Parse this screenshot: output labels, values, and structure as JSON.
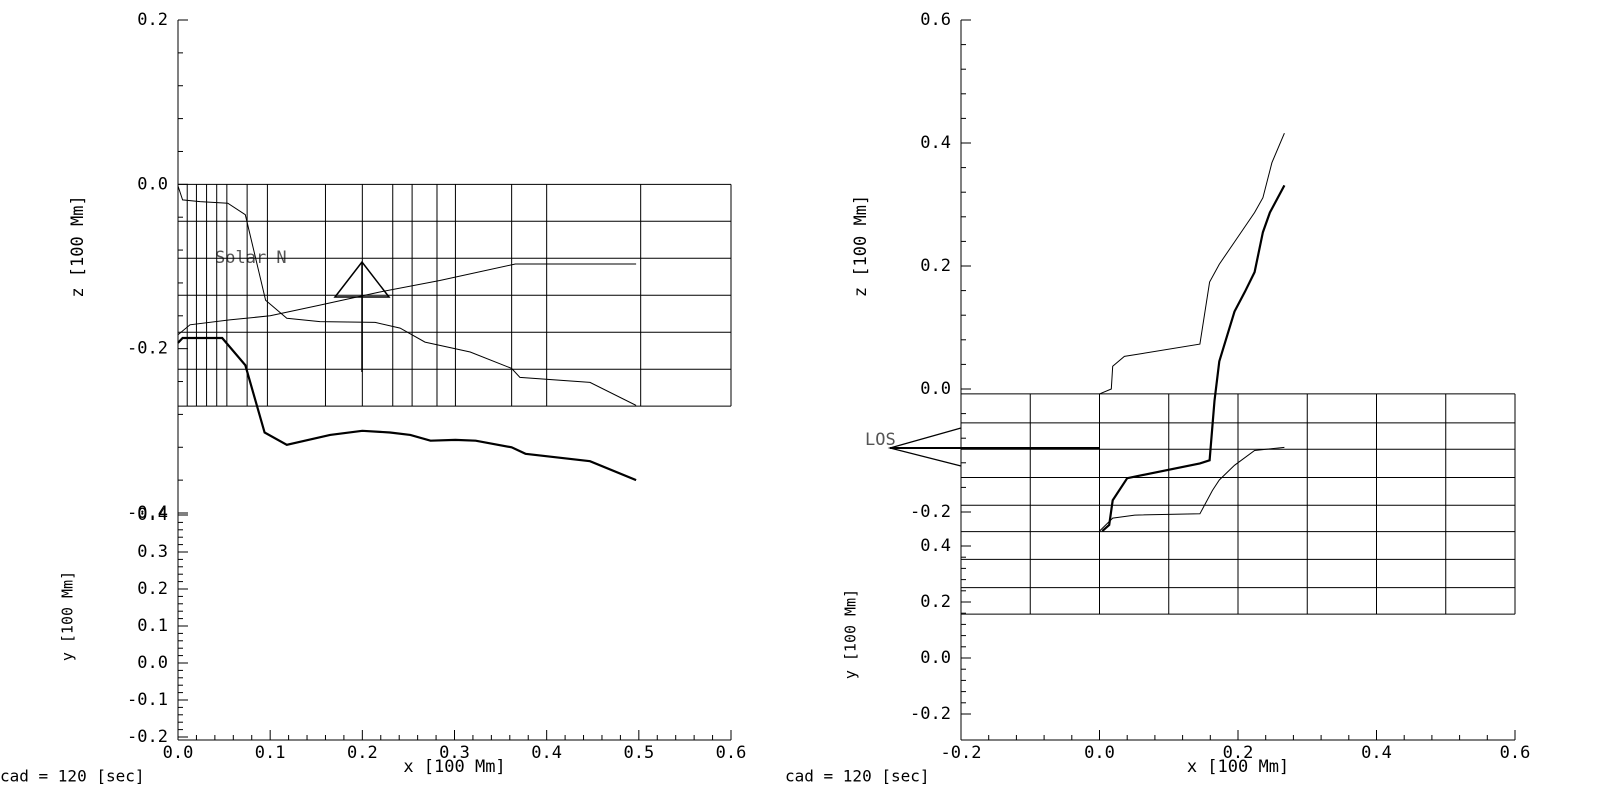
{
  "chart_data": [
    {
      "type": "line",
      "xlabel": "x [100 Mm]",
      "ylabel": "z [100 Mm]",
      "y2label": "y [100 Mm]",
      "footer": "cad =  120 [sec]",
      "annotation": "Solar N",
      "xlim": [
        0,
        0.6
      ],
      "xticks": [
        {
          "value": 0,
          "label": "0.0"
        },
        0.1,
        0.2,
        0.3,
        0.4,
        0.5,
        0.6
      ],
      "ylim": [
        -0.4,
        0.2
      ],
      "yticks": [
        -0.4,
        -0.2,
        {
          "value": 0,
          "label": "0.0"
        },
        0.2
      ],
      "y2lim": [
        -0.2,
        0.4
      ],
      "y2ticks": [
        -0.2,
        -0.1,
        {
          "value": 0,
          "label": "0.0"
        },
        0.1,
        0.2,
        0.3,
        0.4
      ],
      "mesh": {
        "x": [
          0,
          0.01,
          0.02,
          0.031,
          0.042,
          0.053,
          0.075,
          0.097,
          0.16,
          0.2,
          0.233,
          0.254,
          0.281,
          0.301,
          0.362,
          0.4,
          0.502,
          0.6
        ],
        "z": [
          0,
          -0.045,
          -0.09,
          -0.135,
          -0.18,
          -0.225,
          -0.27
        ]
      },
      "series": [
        {
          "color": "#000000",
          "linewidth": 1,
          "x": [
            0,
            0.005,
            0.024,
            0.054,
            0.073,
            0.095,
            0.118,
            0.154,
            0.214,
            0.241,
            0.268,
            0.317,
            0.362,
            0.371,
            0.447,
            0.497
          ],
          "values": [
            -0.002,
            -0.019,
            -0.021,
            -0.023,
            -0.037,
            -0.141,
            -0.163,
            -0.167,
            -0.168,
            -0.175,
            -0.192,
            -0.204,
            -0.224,
            -0.235,
            -0.241,
            -0.269
          ]
        },
        {
          "color": "#000000",
          "linewidth": 1,
          "x": [
            0,
            0.013,
            0.056,
            0.1,
            0.154,
            0.219,
            0.284,
            0.366,
            0.497
          ],
          "values": [
            -0.183,
            -0.171,
            -0.165,
            -0.16,
            -0.147,
            -0.131,
            -0.117,
            -0.097,
            -0.097
          ]
        },
        {
          "color": "#000000",
          "linewidth": 2.2,
          "x": [
            0,
            0.005,
            0.048,
            0.073,
            0.094,
            0.118,
            0.165,
            0.2,
            0.23,
            0.252,
            0.274,
            0.301,
            0.323,
            0.362,
            0.377,
            0.447,
            0.497
          ],
          "values": [
            -0.193,
            -0.187,
            -0.187,
            -0.22,
            -0.302,
            -0.317,
            -0.305,
            -0.3,
            -0.302,
            -0.305,
            -0.312,
            -0.311,
            -0.312,
            -0.32,
            -0.328,
            -0.337,
            -0.36
          ]
        }
      ]
    },
    {
      "type": "line",
      "xlabel": "x [100 Mm]",
      "ylabel": "z [100 Mm]",
      "y2label": "y [100 Mm]",
      "footer": "cad =  120 [sec]",
      "annotation": "LOS",
      "xlim": [
        -0.2,
        0.6
      ],
      "xticks": [
        -0.2,
        {
          "value": 0,
          "label": "0.0"
        },
        0.2,
        0.4,
        0.6
      ],
      "ylim": [
        -0.2,
        0.6
      ],
      "yticks": [
        -0.2,
        {
          "value": 0,
          "label": "0.0"
        },
        0.2,
        0.4,
        0.6
      ],
      "y2lim": [
        -0.3,
        0.4
      ],
      "y2ticks": [
        -0.2,
        {
          "value": 0,
          "label": "0.0"
        },
        0.2,
        0.4
      ],
      "mesh": {
        "x": [
          -0.2,
          -0.1,
          0,
          0.1,
          0.2,
          0.3,
          0.4,
          0.5,
          0.6
        ],
        "z": [
          -0.008,
          -0.055,
          -0.098,
          -0.144,
          -0.189,
          -0.232,
          -0.277,
          -0.323,
          -0.366
        ]
      },
      "series": [
        {
          "color": "#000000",
          "linewidth": 1,
          "x": [
            0,
            0.017,
            0.019,
            0.036,
            0.145,
            0.159,
            0.173,
            0.195,
            0.224,
            0.236,
            0.249,
            0.267
          ],
          "values": [
            -0.008,
            0,
            0.037,
            0.053,
            0.073,
            0.174,
            0.203,
            0.239,
            0.287,
            0.311,
            0.368,
            0.416
          ]
        },
        {
          "color": "#000000",
          "linewidth": 2.2,
          "x": [
            0.004,
            0.014,
            0.019,
            0.04,
            0.145,
            0.159,
            0.166,
            0.173,
            0.195,
            0.21,
            0.224,
            0.236,
            0.246,
            0.267
          ],
          "values": [
            -0.231,
            -0.221,
            -0.181,
            -0.145,
            -0.121,
            -0.116,
            -0.019,
            0.045,
            0.126,
            0.158,
            0.19,
            0.255,
            0.287,
            0.331
          ]
        },
        {
          "color": "#000000",
          "linewidth": 1,
          "x": [
            0,
            0.019,
            0.051,
            0.145,
            0.163,
            0.173,
            0.195,
            0.224,
            0.267
          ],
          "values": [
            -0.231,
            -0.21,
            -0.205,
            -0.203,
            -0.165,
            -0.148,
            -0.124,
            -0.1,
            -0.095
          ]
        }
      ]
    }
  ]
}
